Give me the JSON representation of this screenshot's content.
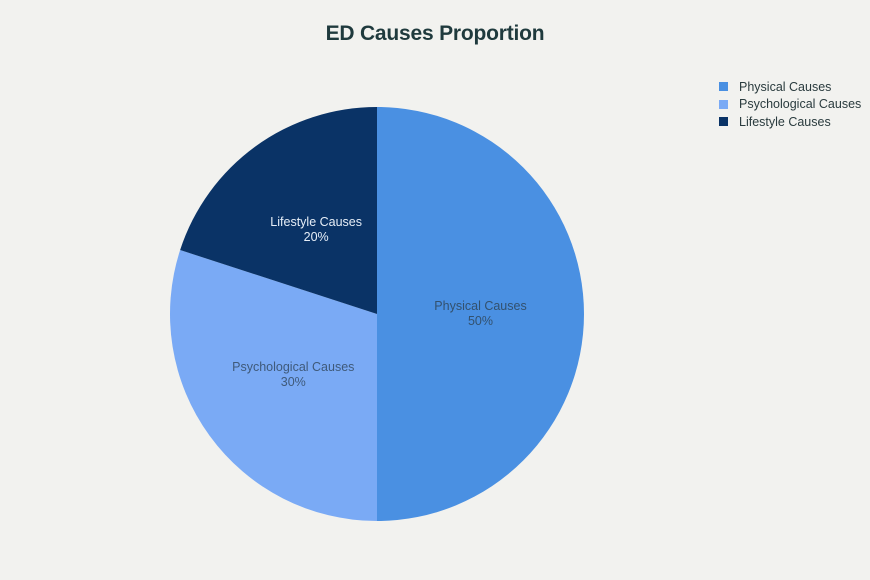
{
  "chart_data": {
    "type": "pie",
    "title": "ED Causes Proportion",
    "categories": [
      "Physical Causes",
      "Psychological Causes",
      "Lifestyle Causes"
    ],
    "values": [
      50,
      30,
      20
    ],
    "unit": "%",
    "colors": [
      "#4a90e2",
      "#7aaaf5",
      "#0a3366"
    ],
    "label_colors": [
      "#33516e",
      "#3f5a7a",
      "#e6eef7"
    ],
    "slice_labels": [
      {
        "name": "Physical Causes",
        "value": "50%"
      },
      {
        "name": "Psychological Causes",
        "value": "30%"
      },
      {
        "name": "Lifestyle Causes",
        "value": "20%"
      }
    ],
    "legend_position": "top-right",
    "start_angle_deg": 0,
    "direction": "clockwise",
    "center": [
      377,
      314
    ],
    "radius": 207
  }
}
